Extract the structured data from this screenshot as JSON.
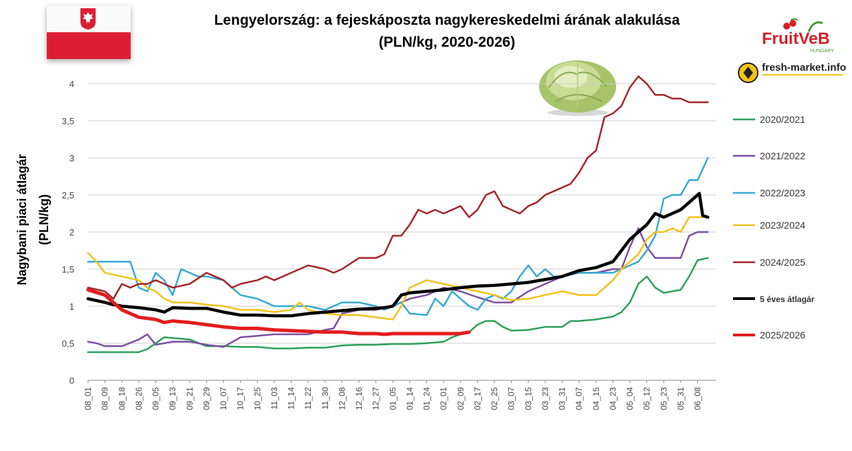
{
  "title_line1": "Lengyelország: a fejeskáposzta nagykereskedelmi árának alakulása",
  "title_line2": "(PLN/kg, 2020-2026)",
  "logos": {
    "fruitveb": "FruitVeB",
    "fruitveb_sub": "HUNGARY",
    "fresh_market": "fresh-market.info"
  },
  "chart_data": {
    "type": "line",
    "title": "Lengyelország: a fejeskáposzta nagykereskedelmi árának alakulása (PLN/kg, 2020-2026)",
    "ylabel_line1": "Nagybani piaci átlagár",
    "ylabel_line2": "(PLN/kg)",
    "xlabel": "",
    "ylim": [
      0,
      4.25
    ],
    "y_ticks": [
      "0",
      "0,5",
      "1",
      "1,5",
      "2",
      "2,5",
      "3",
      "3,5",
      "4"
    ],
    "x_ticks": [
      "08_01",
      "08_09",
      "08_18",
      "08_26",
      "09_05",
      "09_13",
      "09_21",
      "09_29",
      "10_07",
      "10_17",
      "10_25",
      "11_03",
      "11_14",
      "11_22",
      "11_30",
      "12_08",
      "12_16",
      "12_27",
      "01_05",
      "01_14",
      "01_24",
      "02_01",
      "02_09",
      "02_17",
      "02_25",
      "03_07",
      "03_15",
      "03_23",
      "03_31",
      "04_07",
      "04_15",
      "04_23",
      "05_04",
      "05_12",
      "05_23",
      "05_31",
      "06_08"
    ],
    "x_range": [
      0,
      36.5
    ],
    "grid": "horizontal",
    "legend_position": "right",
    "series": [
      {
        "name": "2020/2021",
        "color": "#2ca05a",
        "width": 2.5,
        "x": [
          0,
          1,
          2,
          3,
          3.5,
          4,
          4.5,
          5,
          6,
          7,
          8,
          9,
          10,
          11,
          12,
          13,
          14,
          15,
          16,
          17,
          18,
          19,
          20,
          21,
          21.5,
          22,
          22.5,
          23,
          23.5,
          24,
          24.5,
          25,
          26,
          27,
          28,
          28.5,
          29,
          30,
          31,
          31.5,
          32,
          32.5,
          33,
          33.5,
          34,
          35,
          35.5,
          36,
          36.6
        ],
        "y": [
          0.38,
          0.38,
          0.38,
          0.38,
          0.42,
          0.5,
          0.58,
          0.57,
          0.55,
          0.46,
          0.46,
          0.45,
          0.45,
          0.43,
          0.43,
          0.44,
          0.44,
          0.47,
          0.48,
          0.48,
          0.49,
          0.49,
          0.5,
          0.52,
          0.58,
          0.62,
          0.65,
          0.75,
          0.8,
          0.8,
          0.72,
          0.67,
          0.68,
          0.72,
          0.72,
          0.8,
          0.8,
          0.82,
          0.86,
          0.92,
          1.05,
          1.3,
          1.4,
          1.25,
          1.18,
          1.22,
          1.4,
          1.62,
          1.65
        ]
      },
      {
        "name": "2021/2022",
        "color": "#7e4ea3",
        "width": 2.5,
        "x": [
          0,
          0.5,
          1,
          2,
          3,
          3.5,
          4,
          4.5,
          5,
          6,
          7,
          8,
          9,
          10,
          11,
          12,
          13,
          14,
          14.5,
          15,
          16,
          17,
          18,
          19,
          20,
          21,
          22,
          23,
          24,
          25,
          26,
          27,
          28,
          29,
          30,
          31,
          31.5,
          32,
          32.5,
          33,
          33.5,
          34,
          34.5,
          35,
          35.5,
          36,
          36.6
        ],
        "y": [
          0.52,
          0.5,
          0.46,
          0.46,
          0.55,
          0.62,
          0.48,
          0.5,
          0.52,
          0.52,
          0.48,
          0.45,
          0.58,
          0.6,
          0.62,
          0.62,
          0.62,
          0.68,
          0.7,
          0.9,
          0.95,
          0.95,
          1.0,
          1.1,
          1.15,
          1.25,
          1.2,
          1.12,
          1.05,
          1.05,
          1.2,
          1.3,
          1.4,
          1.45,
          1.45,
          1.5,
          1.5,
          1.8,
          2.05,
          1.8,
          1.65,
          1.65,
          1.65,
          1.65,
          1.95,
          2.0,
          2.0
        ]
      },
      {
        "name": "2022/2023",
        "color": "#35a9d4",
        "width": 2.5,
        "x": [
          0,
          1,
          2,
          2.5,
          3,
          3.5,
          4,
          4.5,
          5,
          5.5,
          6,
          6.5,
          7,
          8,
          8.5,
          9,
          10,
          11,
          11.5,
          12,
          13,
          14,
          15,
          16,
          17,
          17.5,
          18,
          18.5,
          19,
          20,
          20.5,
          21,
          21.5,
          22,
          22.5,
          23,
          23.5,
          24,
          24.5,
          25,
          25.5,
          26,
          26.5,
          27,
          27.5,
          28,
          29,
          30,
          31,
          31.5,
          32,
          32.5,
          33,
          33.5,
          34,
          34.5,
          35,
          35.5,
          36,
          36.6
        ],
        "y": [
          1.6,
          1.6,
          1.6,
          1.6,
          1.25,
          1.2,
          1.45,
          1.35,
          1.15,
          1.5,
          1.45,
          1.4,
          1.4,
          1.35,
          1.25,
          1.15,
          1.1,
          1.0,
          1.0,
          1.0,
          1.0,
          0.95,
          1.05,
          1.05,
          1.0,
          0.95,
          1.0,
          1.05,
          0.9,
          0.88,
          1.1,
          1.0,
          1.2,
          1.1,
          1.0,
          0.95,
          1.1,
          1.15,
          1.1,
          1.2,
          1.4,
          1.55,
          1.4,
          1.5,
          1.4,
          1.4,
          1.45,
          1.45,
          1.45,
          1.5,
          1.55,
          1.6,
          1.75,
          1.95,
          2.45,
          2.5,
          2.5,
          2.7,
          2.7,
          3.0
        ]
      },
      {
        "name": "2023/2024",
        "color": "#f1c21a",
        "width": 2.5,
        "x": [
          0,
          0.5,
          1,
          2,
          3,
          3.5,
          4,
          4.5,
          5,
          6,
          7,
          8,
          9,
          10,
          11,
          12,
          12.5,
          13,
          14,
          15,
          16,
          17,
          18,
          18.5,
          19,
          20,
          21,
          22,
          23,
          24,
          25,
          26,
          27,
          28,
          29,
          30,
          31,
          31.5,
          32,
          32.5,
          33,
          33.5,
          34,
          34.5,
          35,
          35.5,
          36,
          36.6
        ],
        "y": [
          1.72,
          1.6,
          1.45,
          1.4,
          1.35,
          1.25,
          1.2,
          1.1,
          1.05,
          1.05,
          1.02,
          1.0,
          0.95,
          0.95,
          0.92,
          0.95,
          1.05,
          0.95,
          0.9,
          0.88,
          0.88,
          0.85,
          0.82,
          1.0,
          1.25,
          1.35,
          1.3,
          1.25,
          1.2,
          1.15,
          1.08,
          1.1,
          1.15,
          1.2,
          1.15,
          1.15,
          1.35,
          1.5,
          1.6,
          1.7,
          1.9,
          2.0,
          2.0,
          2.05,
          2.0,
          2.2,
          2.2,
          2.2
        ]
      },
      {
        "name": "2024/2025",
        "color": "#a5252a",
        "width": 2.5,
        "x": [
          0,
          1,
          1.5,
          2,
          2.5,
          3,
          3.5,
          4,
          4.5,
          5,
          6,
          7,
          7.5,
          8,
          8.5,
          9,
          10,
          10.5,
          11,
          12,
          13,
          14,
          14.5,
          15,
          16,
          17,
          17.5,
          18,
          18.5,
          19,
          19.5,
          20,
          20.5,
          21,
          22,
          22.5,
          23,
          23.5,
          24,
          24.5,
          25,
          25.5,
          26,
          26.5,
          27,
          27.5,
          28,
          28.5,
          29,
          29.5,
          30,
          30.5,
          31,
          31.5,
          32,
          32.5,
          33,
          33.5,
          34,
          34.5,
          35,
          35.5,
          36,
          36.6
        ],
        "y": [
          1.25,
          1.2,
          1.1,
          1.3,
          1.25,
          1.3,
          1.3,
          1.35,
          1.3,
          1.25,
          1.3,
          1.45,
          1.4,
          1.35,
          1.25,
          1.3,
          1.35,
          1.4,
          1.35,
          1.45,
          1.55,
          1.5,
          1.45,
          1.5,
          1.65,
          1.65,
          1.7,
          1.95,
          1.95,
          2.1,
          2.3,
          2.25,
          2.3,
          2.25,
          2.35,
          2.2,
          2.3,
          2.5,
          2.55,
          2.35,
          2.3,
          2.25,
          2.35,
          2.4,
          2.5,
          2.55,
          2.6,
          2.65,
          2.8,
          3.0,
          3.1,
          3.55,
          3.6,
          3.7,
          3.95,
          4.1,
          4.0,
          3.85,
          3.85,
          3.8,
          3.8,
          3.75,
          3.75,
          3.75
        ]
      },
      {
        "name": "5 éves átlagár",
        "color": "#000000",
        "width": 4.5,
        "x": [
          0,
          1,
          1.5,
          2,
          3,
          4,
          4.5,
          5,
          6,
          7,
          8,
          9,
          10,
          11,
          12,
          13,
          14,
          15,
          16,
          17,
          17.5,
          18,
          18.5,
          19,
          20,
          21,
          22,
          23,
          24,
          25,
          26,
          27,
          28,
          29,
          30,
          31,
          31.5,
          32,
          32.5,
          33,
          33.5,
          34,
          34.5,
          35,
          35.5,
          36,
          36.1,
          36.3,
          36.6
        ],
        "y": [
          1.1,
          1.05,
          1.02,
          1.0,
          0.98,
          0.95,
          0.92,
          0.98,
          0.97,
          0.97,
          0.92,
          0.88,
          0.88,
          0.87,
          0.87,
          0.9,
          0.92,
          0.94,
          0.96,
          0.97,
          0.98,
          1.0,
          1.15,
          1.18,
          1.2,
          1.22,
          1.25,
          1.27,
          1.28,
          1.3,
          1.32,
          1.36,
          1.4,
          1.48,
          1.52,
          1.6,
          1.75,
          1.9,
          2.0,
          2.1,
          2.25,
          2.2,
          2.25,
          2.3,
          2.4,
          2.5,
          2.52,
          2.22,
          2.2
        ]
      },
      {
        "name": "2025/2026",
        "color": "#e31d1d",
        "width": 5,
        "x": [
          0,
          1,
          1.5,
          2,
          3,
          4,
          4.5,
          5,
          6,
          7,
          8,
          9,
          10,
          11,
          12,
          13,
          14,
          15,
          16,
          17,
          17.5,
          18,
          19,
          20,
          21,
          22,
          22.5
        ],
        "y": [
          1.22,
          1.15,
          1.05,
          0.95,
          0.85,
          0.82,
          0.78,
          0.8,
          0.78,
          0.75,
          0.72,
          0.7,
          0.7,
          0.68,
          0.67,
          0.66,
          0.65,
          0.65,
          0.63,
          0.63,
          0.62,
          0.63,
          0.63,
          0.63,
          0.63,
          0.63,
          0.65
        ]
      }
    ]
  }
}
